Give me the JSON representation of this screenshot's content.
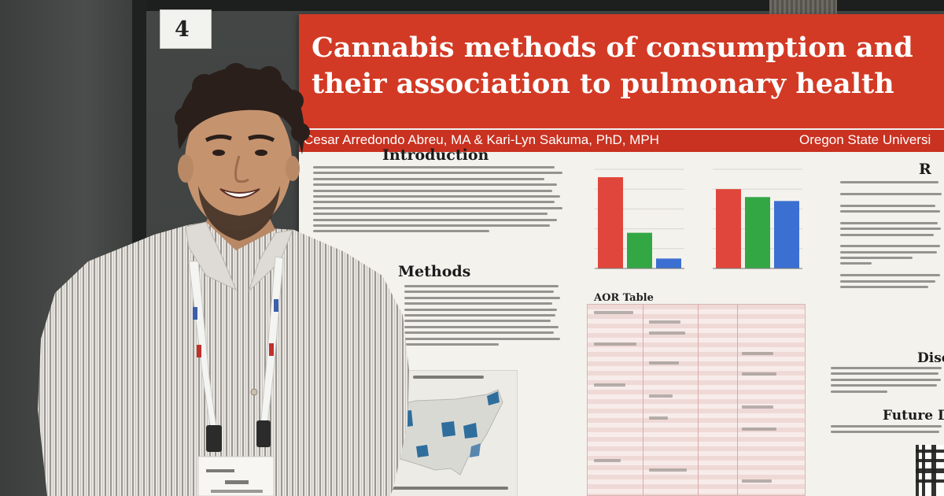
{
  "booth_number": "4",
  "poster": {
    "title": "Cannabis methods of consumption and\ntheir association to pulmonary health",
    "authors": "Cesar Arredondo Abreu, MA & Kari-Lyn Sakuma, PhD, MPH",
    "affiliation": "Oregon State Universi",
    "sections": {
      "introduction": "Introduction",
      "methods": "Methods",
      "aor_table": "AOR Table",
      "results_partial": "R",
      "discussion_partial": "Disc",
      "future_partial": "Future D"
    }
  },
  "chart_data": [
    {
      "type": "bar",
      "categories": [
        "",
        "",
        ""
      ],
      "values": [
        92,
        36,
        10
      ],
      "ylim": [
        0,
        100
      ],
      "colors": [
        "#e0463b",
        "#34a745",
        "#3b6fd1"
      ]
    },
    {
      "type": "bar",
      "categories": [
        "",
        "",
        ""
      ],
      "values": [
        80,
        72,
        68
      ],
      "ylim": [
        0,
        100
      ],
      "colors": [
        "#e0463b",
        "#34a745",
        "#3b6fd1"
      ]
    }
  ],
  "colors": {
    "banner": "#d23a25",
    "poster_bg": "#f3f2ed",
    "map_highlight": "#2f6e9c"
  }
}
